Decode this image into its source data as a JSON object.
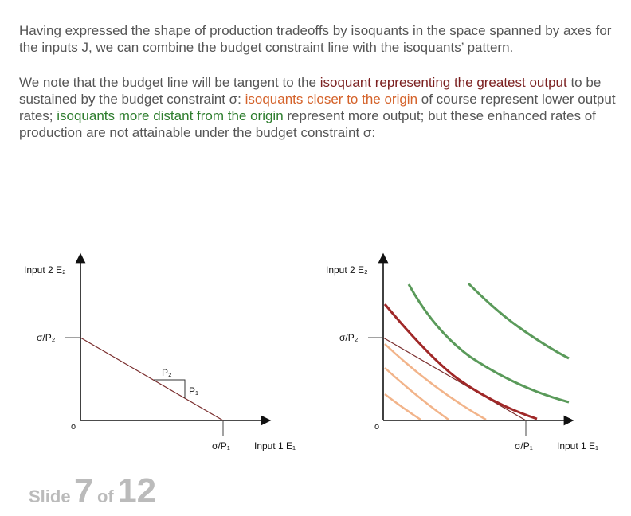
{
  "text": {
    "p1": "Having expressed the shape of production tradeoffs by isoquants in the space spanned by axes for the inputs J, we can combine the budget constraint line with the isoquants’ pattern.",
    "p2_a": "We note that the budget line will be tangent to the ",
    "p2_red": "isoquant representing the greatest output",
    "p2_b": " to be sustained by the budget constraint σ: ",
    "p2_orange": "isoquants closer to the origin",
    "p2_c": " of course represent lower output rates; ",
    "p2_green": "isoquants more distant from the origin",
    "p2_d": " represent more output; but these enhanced rates of production are not attainable under the budget constraint σ:"
  },
  "left_diagram": {
    "y_axis_label": "Input 2 E₂",
    "x_axis_label": "Input 1 E₁",
    "y_intercept_label": "σ/P₂",
    "x_intercept_label": "σ/P₁",
    "origin_label": "o",
    "slope_run_label": "P₂",
    "slope_rise_label": "P₁"
  },
  "right_diagram": {
    "y_axis_label": "Input 2 E₂",
    "x_axis_label": "Input 1 E₁",
    "y_intercept_label": "σ/P₂",
    "x_intercept_label": "σ/P₁",
    "origin_label": "o"
  },
  "colors": {
    "budget_line": "#7a2e2e",
    "tangent_isoquant": "#a02828",
    "lower_isoquants": "#f2b48a",
    "higher_isoquants": "#5a9a5a"
  },
  "footer": {
    "slide_word": "Slide",
    "slide_number": "7",
    "of_word": "of",
    "slide_total": "12"
  }
}
